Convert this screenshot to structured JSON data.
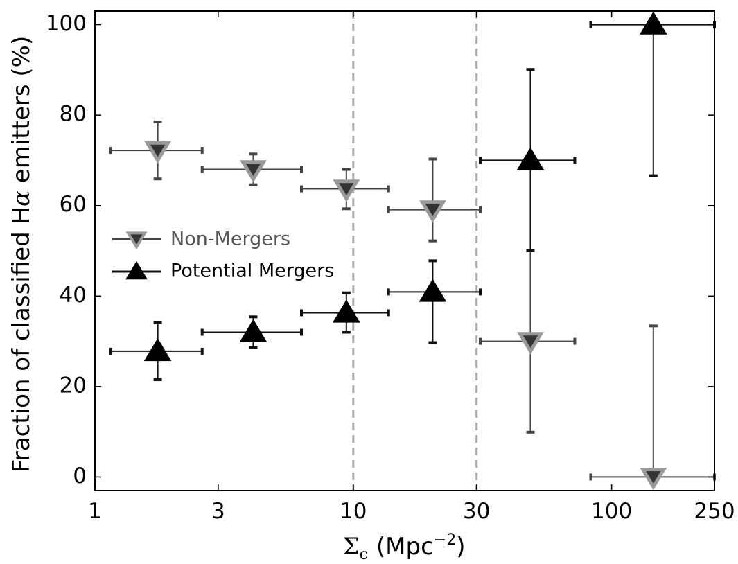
{
  "chart_data": {
    "type": "scatter",
    "xscale": "log",
    "xlim": [
      1,
      250
    ],
    "ylim": [
      -3,
      103
    ],
    "xlabel_symbol": "Σ",
    "xlabel_subscript": "c",
    "xlabel_unit_open": "(Mpc",
    "xlabel_exponent": "−2",
    "xlabel_unit_close": ")",
    "ylabel_prefix": "Fraction of classified H",
    "ylabel_symbol": "α",
    "ylabel_suffix": " emitters (%)",
    "xticks": [
      {
        "value": 1,
        "label": "1"
      },
      {
        "value": 3,
        "label": "3"
      },
      {
        "value": 10,
        "label": "10"
      },
      {
        "value": 30,
        "label": "30"
      },
      {
        "value": 100,
        "label": "100"
      },
      {
        "value": 250,
        "label": "250"
      }
    ],
    "yticks": [
      {
        "value": 0,
        "label": "0"
      },
      {
        "value": 20,
        "label": "20"
      },
      {
        "value": 40,
        "label": "40"
      },
      {
        "value": 60,
        "label": "60"
      },
      {
        "value": 80,
        "label": "80"
      },
      {
        "value": 100,
        "label": "100"
      }
    ],
    "vlines": [
      10,
      30
    ],
    "legend": {
      "position": "center-left",
      "entries": [
        "Non-Mergers",
        "Potential Mergers"
      ]
    },
    "series": [
      {
        "name": "Non-Mergers",
        "marker": "triangle-down",
        "fill": "#333333",
        "edge": "#999999",
        "errcolor": "#444444",
        "text_color": "#555555",
        "points": [
          {
            "x": 1.75,
            "y": 72.2,
            "xlo": 1.15,
            "xhi": 2.6,
            "ylo": 65.9,
            "yhi": 78.5
          },
          {
            "x": 4.1,
            "y": 68.0,
            "xlo": 2.6,
            "xhi": 6.3,
            "ylo": 64.6,
            "yhi": 71.4
          },
          {
            "x": 9.4,
            "y": 63.7,
            "xlo": 6.3,
            "xhi": 13.7,
            "ylo": 59.3,
            "yhi": 68.0
          },
          {
            "x": 20.3,
            "y": 59.1,
            "xlo": 13.7,
            "xhi": 31.0,
            "ylo": 52.2,
            "yhi": 70.3
          },
          {
            "x": 48.5,
            "y": 30.0,
            "xlo": 31.0,
            "xhi": 72.0,
            "ylo": 9.9,
            "yhi": 50.0
          },
          {
            "x": 145,
            "y": 0.0,
            "xlo": 83.0,
            "xhi": 250,
            "ylo": 0.0,
            "yhi": 33.4
          }
        ]
      },
      {
        "name": "Potential Mergers",
        "marker": "triangle-up",
        "fill": "#000000",
        "edge": "#000000",
        "errcolor": "#111111",
        "text_color": "#000000",
        "points": [
          {
            "x": 1.75,
            "y": 27.8,
            "xlo": 1.15,
            "xhi": 2.6,
            "ylo": 21.5,
            "yhi": 34.1
          },
          {
            "x": 4.1,
            "y": 32.0,
            "xlo": 2.6,
            "xhi": 6.3,
            "ylo": 28.6,
            "yhi": 35.4
          },
          {
            "x": 9.4,
            "y": 36.3,
            "xlo": 6.3,
            "xhi": 13.7,
            "ylo": 32.0,
            "yhi": 40.7
          },
          {
            "x": 20.3,
            "y": 40.9,
            "xlo": 13.7,
            "xhi": 31.0,
            "ylo": 29.7,
            "yhi": 47.8
          },
          {
            "x": 48.5,
            "y": 70.0,
            "xlo": 31.0,
            "xhi": 72.0,
            "ylo": 50.0,
            "yhi": 90.1
          },
          {
            "x": 145,
            "y": 100.0,
            "xlo": 83.0,
            "xhi": 250,
            "ylo": 66.6,
            "yhi": 100.0
          }
        ]
      }
    ]
  }
}
